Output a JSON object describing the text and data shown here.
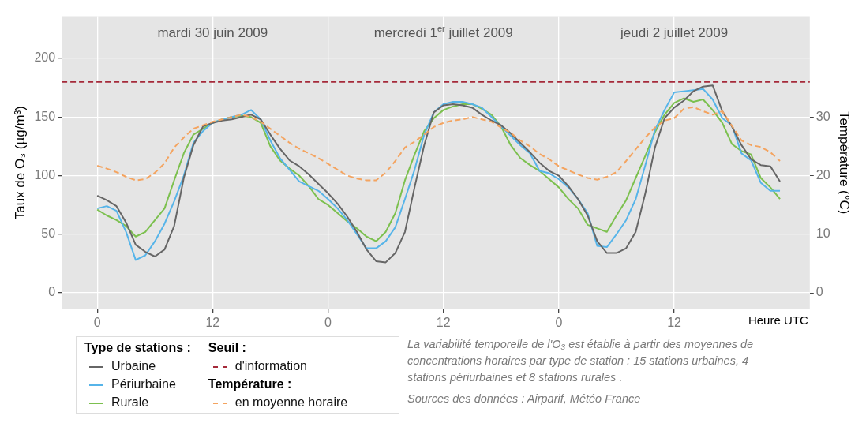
{
  "chart_data": {
    "type": "line",
    "ylabel": "Taux de O₃ (µg/m³)",
    "y2label": "Température (°C)",
    "xlabel": "Heure UTC",
    "legend_title": "Type de stations :",
    "x": [
      "2009-06-30T00:00",
      "2009-06-30T01:00",
      "2009-06-30T02:00",
      "2009-06-30T03:00",
      "2009-06-30T04:00",
      "2009-06-30T05:00",
      "2009-06-30T06:00",
      "2009-06-30T07:00",
      "2009-06-30T08:00",
      "2009-06-30T09:00",
      "2009-06-30T10:00",
      "2009-06-30T11:00",
      "2009-06-30T12:00",
      "2009-06-30T13:00",
      "2009-06-30T14:00",
      "2009-06-30T15:00",
      "2009-06-30T16:00",
      "2009-06-30T17:00",
      "2009-06-30T18:00",
      "2009-06-30T19:00",
      "2009-06-30T20:00",
      "2009-06-30T21:00",
      "2009-06-30T22:00",
      "2009-06-30T23:00",
      "2009-07-01T00:00",
      "2009-07-01T01:00",
      "2009-07-01T02:00",
      "2009-07-01T03:00",
      "2009-07-01T04:00",
      "2009-07-01T05:00",
      "2009-07-01T06:00",
      "2009-07-01T07:00",
      "2009-07-01T08:00",
      "2009-07-01T09:00",
      "2009-07-01T10:00",
      "2009-07-01T11:00",
      "2009-07-01T12:00",
      "2009-07-01T13:00",
      "2009-07-01T14:00",
      "2009-07-01T15:00",
      "2009-07-01T16:00",
      "2009-07-01T17:00",
      "2009-07-01T18:00",
      "2009-07-01T19:00",
      "2009-07-01T20:00",
      "2009-07-01T21:00",
      "2009-07-01T22:00",
      "2009-07-01T23:00",
      "2009-07-02T00:00",
      "2009-07-02T01:00",
      "2009-07-02T02:00",
      "2009-07-02T03:00",
      "2009-07-02T04:00",
      "2009-07-02T05:00",
      "2009-07-02T06:00",
      "2009-07-02T07:00",
      "2009-07-02T08:00",
      "2009-07-02T09:00",
      "2009-07-02T10:00",
      "2009-07-02T11:00",
      "2009-07-02T12:00",
      "2009-07-02T13:00",
      "2009-07-02T14:00",
      "2009-07-02T15:00",
      "2009-07-02T16:00",
      "2009-07-02T17:00",
      "2009-07-02T18:00",
      "2009-07-02T19:00",
      "2009-07-02T20:00",
      "2009-07-02T21:00",
      "2009-07-02T22:00",
      "2009-07-02T23:00"
    ],
    "series": [
      {
        "name": "Urbaine",
        "color": "#666666",
        "values": [
          83,
          79,
          74,
          60,
          41,
          35,
          31,
          37,
          57,
          98,
          126,
          142,
          145,
          147,
          148,
          150,
          152,
          148,
          135,
          123,
          113,
          108,
          101,
          93,
          85,
          76,
          65,
          52,
          37,
          27,
          26,
          34,
          52,
          90,
          126,
          154,
          160,
          161,
          160,
          158,
          152,
          147,
          143,
          136,
          128,
          120,
          111,
          104,
          100,
          91,
          80,
          66,
          44,
          34,
          34,
          38,
          52,
          85,
          124,
          149,
          158,
          164,
          172,
          176,
          177,
          155,
          142,
          126,
          114,
          109,
          108,
          95
        ]
      },
      {
        "name": "Périurbaine",
        "color": "#56b4e9",
        "values": [
          72,
          74,
          70,
          52,
          28,
          32,
          44,
          59,
          78,
          100,
          128,
          138,
          145,
          148,
          150,
          152,
          156,
          148,
          130,
          115,
          105,
          95,
          91,
          87,
          80,
          72,
          62,
          50,
          38,
          38,
          44,
          56,
          80,
          105,
          135,
          154,
          161,
          163,
          163,
          161,
          158,
          150,
          142,
          134,
          126,
          119,
          104,
          102,
          97,
          90,
          80,
          68,
          40,
          39,
          50,
          62,
          80,
          109,
          139,
          156,
          171,
          172,
          173,
          174,
          165,
          149,
          143,
          119,
          113,
          94,
          87,
          87
        ]
      },
      {
        "name": "Rurale",
        "color": "#7cc04f",
        "values": [
          71,
          66,
          62,
          57,
          48,
          52,
          62,
          72,
          96,
          119,
          135,
          140,
          145,
          148,
          150,
          151,
          150,
          145,
          125,
          113,
          106,
          100,
          91,
          80,
          75,
          68,
          61,
          55,
          48,
          44,
          52,
          68,
          96,
          118,
          138,
          149,
          156,
          159,
          161,
          161,
          157,
          152,
          142,
          126,
          115,
          109,
          104,
          97,
          90,
          80,
          72,
          58,
          55,
          52,
          66,
          79,
          98,
          117,
          137,
          152,
          162,
          166,
          163,
          165,
          156,
          145,
          127,
          121,
          118,
          98,
          90,
          80
        ]
      },
      {
        "name": "en moyenne horaire",
        "color": "#f4a460",
        "axis": "y2",
        "line_style": "dashed",
        "values": [
          21.7,
          21.2,
          20.6,
          19.8,
          19.2,
          19.4,
          20.5,
          22.1,
          24.8,
          26.5,
          28,
          28.6,
          29.2,
          29.6,
          30,
          30.4,
          30,
          29.2,
          28,
          26.8,
          25.6,
          24.6,
          23.8,
          23,
          22,
          21,
          20,
          19.5,
          19.2,
          19.2,
          20.5,
          22.5,
          24.8,
          25.8,
          27,
          28.3,
          29,
          29.4,
          29.6,
          30,
          29.6,
          29.2,
          28.2,
          27.3,
          26,
          25,
          23.7,
          22.8,
          21.6,
          20.9,
          20.2,
          19.6,
          19.3,
          19.8,
          20.6,
          22.5,
          24.5,
          26.5,
          28.2,
          29.4,
          29.8,
          31.4,
          31.7,
          31,
          30.4,
          31,
          28.5,
          26,
          25.2,
          24.9,
          24,
          22.5
        ]
      }
    ],
    "xlim": [
      "2009-06-29T20:18",
      "2009-07-03T02:06"
    ],
    "xticks": [
      {
        "value": "2009-06-30T00:00",
        "label": "0"
      },
      {
        "value": "2009-06-30T12:00",
        "label": "12"
      },
      {
        "value": "2009-07-01T00:00",
        "label": "0"
      },
      {
        "value": "2009-07-01T12:00",
        "label": "12"
      },
      {
        "value": "2009-07-02T00:00",
        "label": "0"
      },
      {
        "value": "2009-07-02T12:00",
        "label": "12"
      }
    ],
    "ylim": [
      -14,
      236
    ],
    "yticks": [
      0,
      50,
      100,
      150,
      200
    ],
    "y2lim": [
      -2.8,
      47.2
    ],
    "y2ticks": [
      0,
      10,
      20,
      30
    ],
    "ref_lines": [
      {
        "axis": "y",
        "value": 180,
        "label": "d'information",
        "color": "#a52a3a",
        "line_style": "dashed"
      }
    ],
    "annotations": [
      "mardi 30 juin 2009",
      "mercredi 1$^{er}$ juillet 2009",
      "jeudi 2 juillet 2009",
      "Seuil :",
      "Température :",
      "La variabilité temporelle de l'O₃ est établie à partir des moyennes de concentrations horaires par type de station : 15 stations urbaines, 4 stations périurbaines et 8 stations rurales .",
      "Sources des données :  Airparif, Météo France"
    ],
    "grid": true,
    "legend": "bottom left",
    "marker": "none"
  }
}
